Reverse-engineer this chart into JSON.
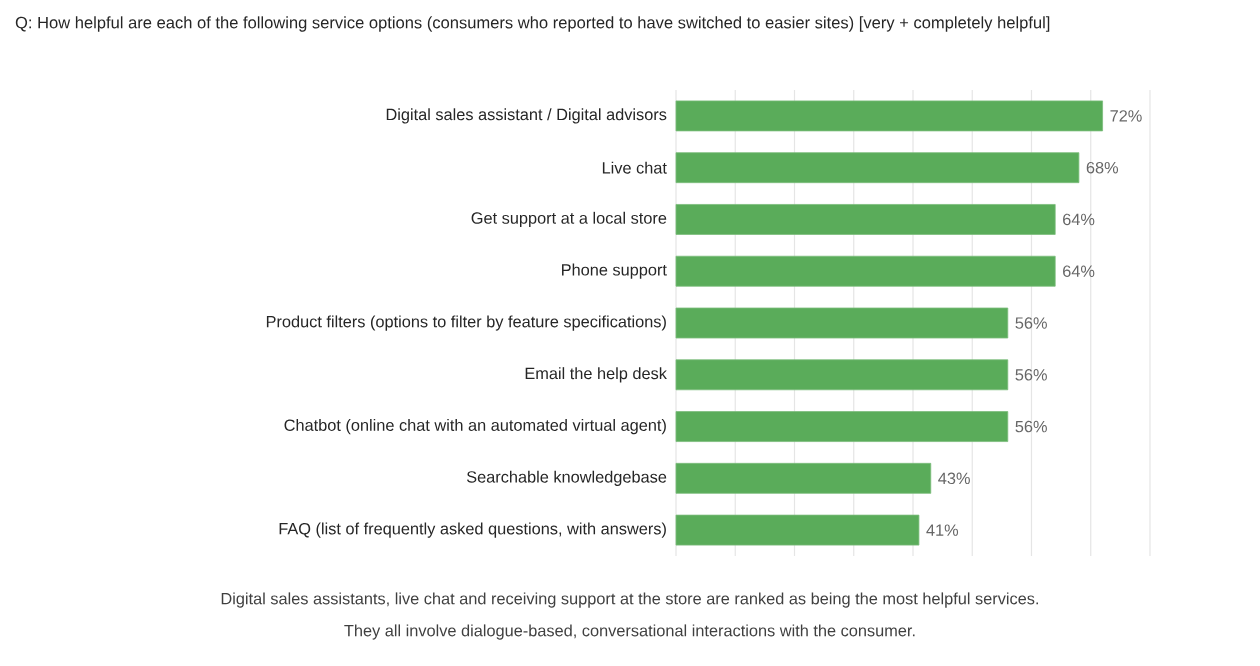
{
  "chart_data": {
    "type": "bar",
    "orientation": "horizontal",
    "title": "Q: How helpful are each of the following service options (consumers who reported to have switched to easier sites) [very + completely helpful]",
    "categories": [
      "Digital sales assistant / Digital advisors",
      "Live chat",
      "Get support at a local store",
      "Phone support",
      "Product filters (options to filter by feature specifications)",
      "Email the help desk",
      "Chatbot (online chat with an automated virtual agent)",
      "Searchable knowledgebase",
      "FAQ (list of frequently asked questions, with answers)"
    ],
    "values": [
      72,
      68,
      64,
      64,
      56,
      56,
      56,
      43,
      41
    ],
    "value_labels": [
      "72%",
      "68%",
      "64%",
      "64%",
      "56%",
      "56%",
      "56%",
      "43%",
      "41%"
    ],
    "color": "#5aac5a",
    "xlim": [
      0,
      80
    ],
    "xticks": [
      {
        "value": 0,
        "label": null
      },
      {
        "value": 10,
        "label": null
      },
      {
        "value": 20,
        "label": null
      },
      {
        "value": 30,
        "label": null
      },
      {
        "value": 40,
        "label": null
      },
      {
        "value": 50,
        "label": null
      },
      {
        "value": 60,
        "label": null
      },
      {
        "value": 70,
        "label": null
      },
      {
        "value": 80,
        "label": null
      }
    ],
    "grid": "x",
    "tick_labels": "y",
    "annotations": [
      "Digital sales assistants, live chat and receiving support at the store are ranked as being the most helpful services.",
      "They all involve dialogue-based, conversational interactions with the consumer."
    ]
  }
}
